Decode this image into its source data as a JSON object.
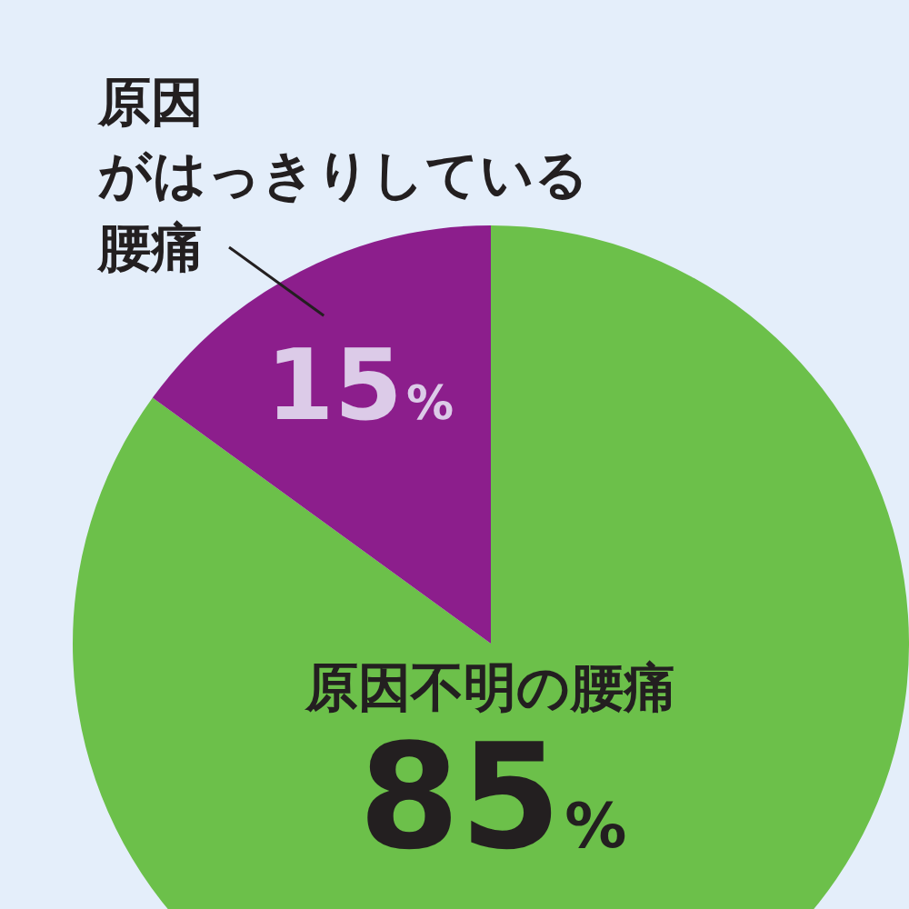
{
  "chart_data": {
    "type": "pie",
    "categories": [
      "原因不明の腰痛",
      "原因がはっきりしている腰痛"
    ],
    "values": [
      85,
      15
    ],
    "colors": [
      "#6cc04a",
      "#8c1e8c"
    ],
    "value_labels": [
      "85%",
      "15%"
    ],
    "legend": false
  }
}
